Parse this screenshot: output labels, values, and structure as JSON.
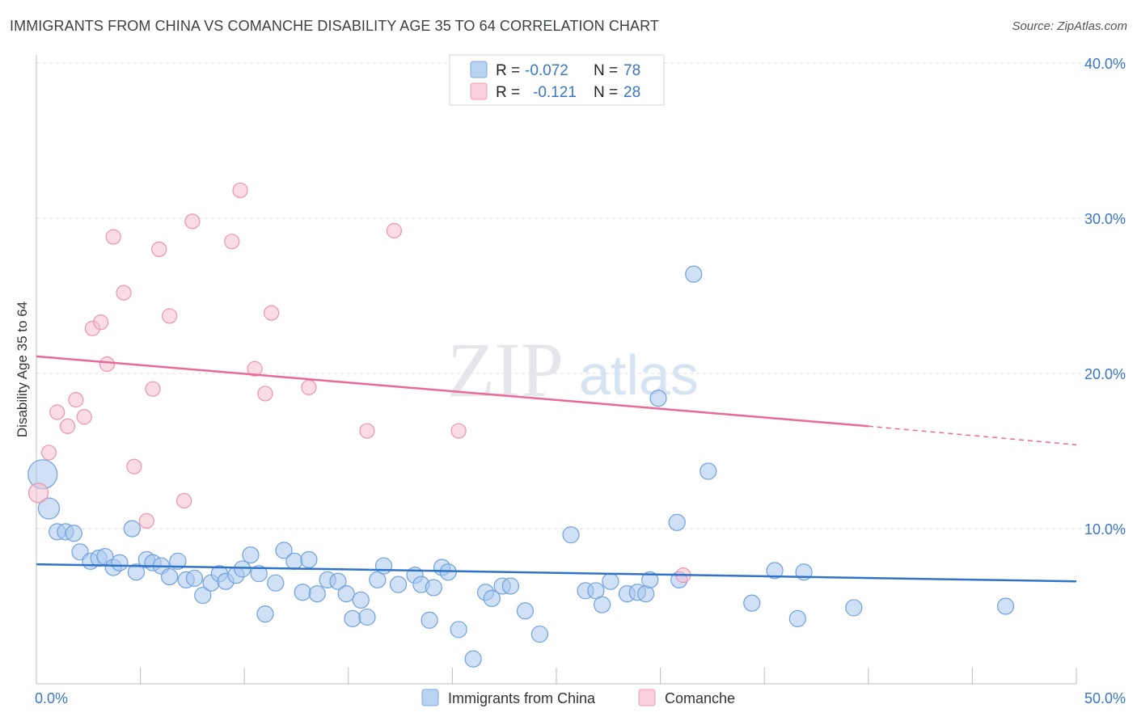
{
  "title": "IMMIGRANTS FROM CHINA VS COMANCHE DISABILITY AGE 35 TO 64 CORRELATION CHART",
  "source": "Source: ZipAtlas.com",
  "watermark": {
    "zip": "ZIP",
    "atlas": "atlas"
  },
  "colors": {
    "blue_fill": "#a9c8ef",
    "blue_stroke": "#6fa0dc",
    "blue_line": "#2f74c9",
    "pink_fill": "#f6c0d0",
    "pink_stroke": "#eb93ae",
    "pink_line": "#e8699a",
    "axis_text": "#3a76c4",
    "grid": "#d9dde3"
  },
  "legend": {
    "r_label": "R =",
    "n_label": "N =",
    "rows": [
      {
        "r": "-0.072",
        "n": "78",
        "swatch": "blue"
      },
      {
        "r": "-0.121",
        "n": "28",
        "swatch": "pink"
      }
    ]
  },
  "bottom_legend": [
    "Immigrants from China",
    "Comanche"
  ],
  "chart_data": {
    "type": "scatter",
    "ylabel": "Disability Age 35 to 64",
    "x_tick_labels": {
      "min": "0.0%",
      "max": "50.0%"
    },
    "y_tick_labels": [
      "10.0%",
      "20.0%",
      "30.0%",
      "40.0%"
    ],
    "xlim": [
      0,
      50
    ],
    "ylim": [
      0,
      40
    ],
    "grid": true,
    "series": [
      {
        "name": "Immigrants from China",
        "color": "blue",
        "trend": [
          [
            0,
            7.7
          ],
          [
            50,
            6.6
          ]
        ],
        "points": [
          [
            0.3,
            13.5,
            18
          ],
          [
            0.6,
            11.3,
            13
          ],
          [
            1.0,
            9.8,
            10
          ],
          [
            1.4,
            9.8,
            10
          ],
          [
            1.8,
            9.7,
            10
          ],
          [
            2.1,
            8.5,
            10
          ],
          [
            2.6,
            7.9,
            10
          ],
          [
            3.0,
            8.1,
            10
          ],
          [
            3.3,
            8.2,
            10
          ],
          [
            3.7,
            7.5,
            10
          ],
          [
            4.0,
            7.8,
            10
          ],
          [
            4.6,
            10.0,
            10
          ],
          [
            4.8,
            7.2,
            10
          ],
          [
            5.3,
            8.0,
            10
          ],
          [
            5.6,
            7.8,
            10
          ],
          [
            6.0,
            7.6,
            10
          ],
          [
            6.4,
            6.9,
            10
          ],
          [
            6.8,
            7.9,
            10
          ],
          [
            7.2,
            6.7,
            10
          ],
          [
            7.6,
            6.8,
            10
          ],
          [
            8.0,
            5.7,
            10
          ],
          [
            8.4,
            6.5,
            10
          ],
          [
            8.8,
            7.1,
            10
          ],
          [
            9.1,
            6.6,
            10
          ],
          [
            9.6,
            7.0,
            10
          ],
          [
            9.9,
            7.4,
            10
          ],
          [
            10.3,
            8.3,
            10
          ],
          [
            10.7,
            7.1,
            10
          ],
          [
            11.0,
            4.5,
            10
          ],
          [
            11.5,
            6.5,
            10
          ],
          [
            11.9,
            8.6,
            10
          ],
          [
            12.4,
            7.9,
            10
          ],
          [
            12.8,
            5.9,
            10
          ],
          [
            13.1,
            8.0,
            10
          ],
          [
            13.5,
            5.8,
            10
          ],
          [
            14.0,
            6.7,
            10
          ],
          [
            14.5,
            6.6,
            10
          ],
          [
            14.9,
            5.8,
            10
          ],
          [
            15.2,
            4.2,
            10
          ],
          [
            15.6,
            5.4,
            10
          ],
          [
            15.9,
            4.3,
            10
          ],
          [
            16.4,
            6.7,
            10
          ],
          [
            16.7,
            7.6,
            10
          ],
          [
            17.4,
            6.4,
            10
          ],
          [
            18.2,
            7.0,
            10
          ],
          [
            18.5,
            6.4,
            10
          ],
          [
            18.9,
            4.1,
            10
          ],
          [
            19.1,
            6.2,
            10
          ],
          [
            19.5,
            7.5,
            10
          ],
          [
            19.8,
            7.2,
            10
          ],
          [
            20.3,
            3.5,
            10
          ],
          [
            21.0,
            1.6,
            10
          ],
          [
            21.6,
            5.9,
            10
          ],
          [
            21.9,
            5.5,
            10
          ],
          [
            22.4,
            6.3,
            10
          ],
          [
            22.8,
            6.3,
            10
          ],
          [
            23.5,
            4.7,
            10
          ],
          [
            24.2,
            3.2,
            10
          ],
          [
            25.7,
            9.6,
            10
          ],
          [
            26.4,
            6.0,
            10
          ],
          [
            26.9,
            6.0,
            10
          ],
          [
            27.2,
            5.1,
            10
          ],
          [
            27.6,
            6.6,
            10
          ],
          [
            28.4,
            5.8,
            10
          ],
          [
            28.9,
            5.9,
            10
          ],
          [
            29.3,
            5.8,
            10
          ],
          [
            29.5,
            6.7,
            10
          ],
          [
            29.9,
            18.4,
            10
          ],
          [
            30.8,
            10.4,
            10
          ],
          [
            30.9,
            6.7,
            10
          ],
          [
            31.6,
            26.4,
            10
          ],
          [
            32.3,
            13.7,
            10
          ],
          [
            34.4,
            5.2,
            10
          ],
          [
            35.5,
            7.3,
            10
          ],
          [
            36.6,
            4.2,
            10
          ],
          [
            36.9,
            7.2,
            10
          ],
          [
            39.3,
            4.9,
            10
          ],
          [
            46.6,
            5.0,
            10
          ]
        ]
      },
      {
        "name": "Comanche",
        "color": "pink",
        "trend": [
          [
            0,
            21.1
          ],
          [
            40,
            16.6
          ]
        ],
        "trend_dashed": [
          [
            40,
            16.6
          ],
          [
            50,
            15.4
          ]
        ],
        "points": [
          [
            0.1,
            12.3,
            12
          ],
          [
            0.6,
            14.9,
            9
          ],
          [
            1.0,
            17.5,
            9
          ],
          [
            1.5,
            16.6,
            9
          ],
          [
            1.9,
            18.3,
            9
          ],
          [
            2.3,
            17.2,
            9
          ],
          [
            2.7,
            22.9,
            9
          ],
          [
            3.1,
            23.3,
            9
          ],
          [
            3.4,
            20.6,
            9
          ],
          [
            3.7,
            28.8,
            9
          ],
          [
            4.2,
            25.2,
            9
          ],
          [
            4.7,
            14.0,
            9
          ],
          [
            5.3,
            10.5,
            9
          ],
          [
            5.6,
            19.0,
            9
          ],
          [
            5.9,
            28.0,
            9
          ],
          [
            6.4,
            23.7,
            9
          ],
          [
            7.1,
            11.8,
            9
          ],
          [
            7.5,
            29.8,
            9
          ],
          [
            9.4,
            28.5,
            9
          ],
          [
            9.8,
            31.8,
            9
          ],
          [
            10.5,
            20.3,
            9
          ],
          [
            11.0,
            18.7,
            9
          ],
          [
            11.3,
            23.9,
            9
          ],
          [
            13.1,
            19.1,
            9
          ],
          [
            15.9,
            16.3,
            9
          ],
          [
            17.2,
            29.2,
            9
          ],
          [
            20.3,
            16.3,
            9
          ],
          [
            31.1,
            7.0,
            9
          ]
        ]
      }
    ]
  }
}
